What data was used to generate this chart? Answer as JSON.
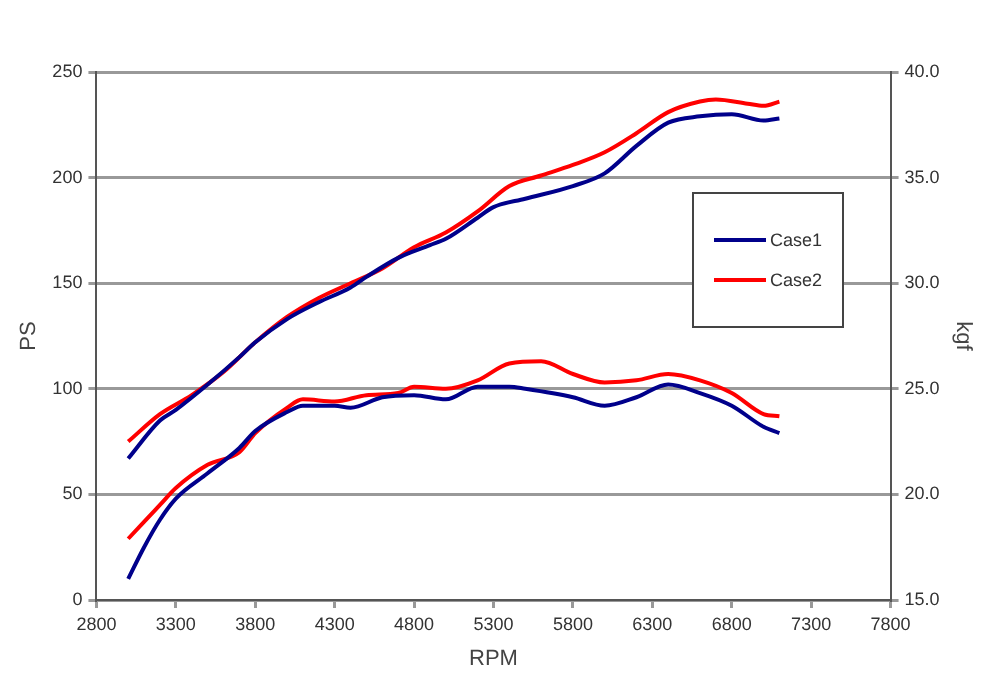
{
  "chart_data": {
    "type": "line",
    "xlabel": "RPM",
    "ylabel": "PS",
    "y2label": "kgf",
    "xlim": [
      2800,
      7800
    ],
    "xticks": [
      2800,
      3300,
      3800,
      4300,
      4800,
      5300,
      5800,
      6300,
      6800,
      7300,
      7800
    ],
    "ylim": [
      0,
      250
    ],
    "yticks": [
      0,
      50,
      100,
      150,
      200,
      250
    ],
    "y2lim": [
      15,
      40
    ],
    "y2ticks": [
      {
        "value": 15,
        "label": "15.0"
      },
      {
        "value": 20,
        "label": "20.0"
      },
      {
        "value": 25,
        "label": "25.0"
      },
      {
        "value": 30,
        "label": "30.0"
      },
      {
        "value": 35,
        "label": "35.0"
      },
      {
        "value": 40,
        "label": "40.0"
      }
    ],
    "grid": "y",
    "legend": "right",
    "marker": "none",
    "line_style": "solid",
    "series": [
      {
        "name": "Case1",
        "color": "#00008b",
        "x": [
          3000,
          3200,
          3300,
          3500,
          3700,
          3800,
          4000,
          4200,
          4400,
          4500,
          4700,
          4900,
          5000,
          5200,
          5300,
          5500,
          5800,
          6000,
          6200,
          6400,
          6600,
          6800,
          7000,
          7100
        ],
        "values": [
          67,
          85,
          90,
          102,
          115,
          122,
          133,
          141,
          148,
          153,
          162,
          168,
          171,
          181,
          186,
          190,
          196,
          202,
          215,
          226,
          229,
          230,
          227,
          228
        ]
      },
      {
        "name": "Case2",
        "color": "#ff0000",
        "x": [
          3000,
          3200,
          3400,
          3600,
          3800,
          4000,
          4200,
          4400,
          4600,
          4800,
          5000,
          5200,
          5400,
          5600,
          5800,
          6000,
          6200,
          6400,
          6600,
          6700,
          6900,
          7000,
          7100
        ],
        "values": [
          75,
          88,
          97,
          108,
          122,
          134,
          143,
          150,
          157,
          167,
          174,
          184,
          196,
          201,
          206,
          212,
          221,
          231,
          236,
          237,
          235,
          234,
          236
        ]
      },
      {
        "color": "#00008b",
        "axis": "y2",
        "x": [
          3000,
          3100,
          3200,
          3300,
          3500,
          3700,
          3800,
          4000,
          4100,
          4300,
          4400,
          4600,
          4800,
          5000,
          5200,
          5400,
          5500,
          5800,
          6000,
          6200,
          6400,
          6600,
          6800,
          7000,
          7100
        ],
        "values": [
          16.0,
          17.5,
          18.8,
          19.8,
          21.0,
          22.2,
          23.0,
          23.9,
          24.2,
          24.2,
          24.1,
          24.6,
          24.7,
          24.5,
          25.1,
          25.1,
          25.0,
          24.6,
          24.2,
          24.6,
          25.2,
          24.8,
          24.2,
          23.2,
          22.9
        ]
      },
      {
        "color": "#ff0000",
        "axis": "y2",
        "x": [
          3000,
          3200,
          3300,
          3500,
          3700,
          3800,
          4000,
          4100,
          4300,
          4500,
          4700,
          4800,
          5000,
          5200,
          5400,
          5600,
          5800,
          6000,
          6200,
          6400,
          6600,
          6800,
          7000,
          7100
        ],
        "values": [
          17.9,
          19.5,
          20.3,
          21.4,
          22.0,
          22.9,
          24.1,
          24.5,
          24.4,
          24.7,
          24.8,
          25.1,
          25.0,
          25.4,
          26.2,
          26.3,
          25.7,
          25.3,
          25.4,
          25.7,
          25.4,
          24.8,
          23.8,
          23.7
        ]
      }
    ]
  }
}
